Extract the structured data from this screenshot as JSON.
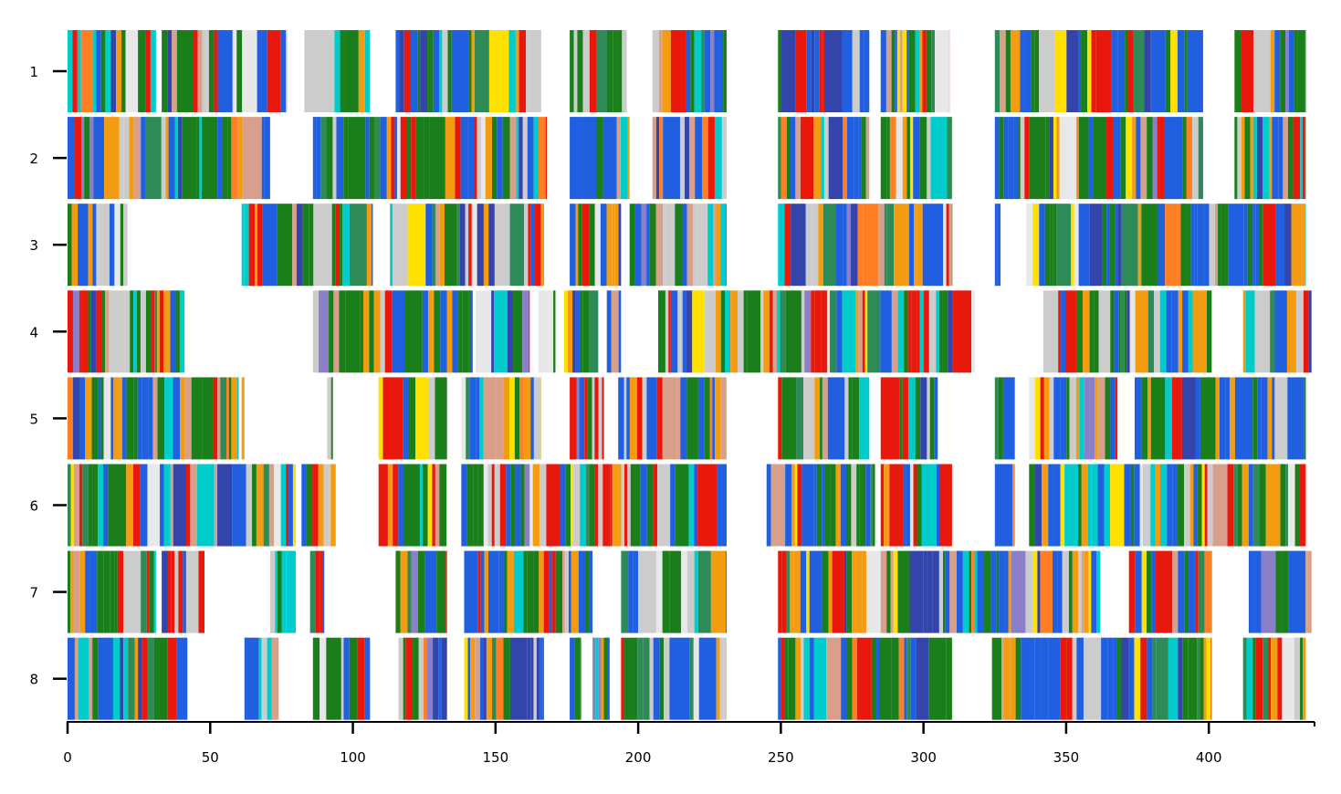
{
  "chart_data": {
    "type": "bar",
    "orientation": "horizontal-strips",
    "title": "",
    "xlabel": "",
    "ylabel": "",
    "xlim": [
      -1,
      437
    ],
    "x_ticks": [
      0,
      50,
      100,
      150,
      200,
      250,
      300,
      350,
      400
    ],
    "y_categories": [
      "1",
      "2",
      "3",
      "4",
      "5",
      "6",
      "7",
      "8"
    ],
    "grid": false,
    "legend": "none",
    "palette": [
      "#1a7f1a",
      "#1f5fe0",
      "#e8180c",
      "#f39c12",
      "#00cccc",
      "#cccccc",
      "#d8a08a",
      "#2e8b57",
      "#3344aa",
      "#ffe000",
      "#ff7f24",
      "#8a7fc8",
      "#e8e8e8"
    ],
    "rows": [
      {
        "label": "1",
        "segments": [
          [
            0,
            31
          ],
          [
            33,
            77
          ],
          [
            83,
            106
          ],
          [
            115,
            166
          ],
          [
            176,
            196
          ],
          [
            205,
            231
          ],
          [
            249,
            281
          ],
          [
            285,
            309
          ],
          [
            325,
            398
          ],
          [
            409,
            434
          ]
        ]
      },
      {
        "label": "2",
        "segments": [
          [
            0,
            71
          ],
          [
            86,
            168
          ],
          [
            176,
            197
          ],
          [
            205,
            231
          ],
          [
            249,
            281
          ],
          [
            285,
            310
          ],
          [
            325,
            398
          ],
          [
            409,
            434
          ]
        ]
      },
      {
        "label": "3",
        "segments": [
          [
            0,
            21
          ],
          [
            61,
            107
          ],
          [
            113,
            167
          ],
          [
            176,
            194
          ],
          [
            197,
            231
          ],
          [
            249,
            310
          ],
          [
            325,
            327
          ],
          [
            336,
            434
          ]
        ]
      },
      {
        "label": "4",
        "segments": [
          [
            0,
            41
          ],
          [
            86,
            142
          ],
          [
            143,
            162
          ],
          [
            165,
            171
          ],
          [
            174,
            186
          ],
          [
            189,
            194
          ],
          [
            207,
            318
          ],
          [
            342,
            401
          ],
          [
            412,
            436
          ]
        ]
      },
      {
        "label": "5",
        "segments": [
          [
            0,
            60
          ],
          [
            61,
            62
          ],
          [
            91,
            93
          ],
          [
            109,
            133
          ],
          [
            138,
            166
          ],
          [
            176,
            188
          ],
          [
            193,
            231
          ],
          [
            249,
            281
          ],
          [
            285,
            305
          ],
          [
            325,
            332
          ],
          [
            337,
            368
          ],
          [
            374,
            434
          ]
        ]
      },
      {
        "label": "6",
        "segments": [
          [
            0,
            80
          ],
          [
            82,
            94
          ],
          [
            109,
            133
          ],
          [
            138,
            231
          ],
          [
            245,
            283
          ],
          [
            285,
            310
          ],
          [
            325,
            332
          ],
          [
            337,
            434
          ]
        ]
      },
      {
        "label": "7",
        "segments": [
          [
            0,
            31
          ],
          [
            33,
            48
          ],
          [
            71,
            80
          ],
          [
            85,
            90
          ],
          [
            115,
            133
          ],
          [
            139,
            184
          ],
          [
            194,
            231
          ],
          [
            249,
            362
          ],
          [
            372,
            401
          ],
          [
            414,
            436
          ]
        ]
      },
      {
        "label": "8",
        "segments": [
          [
            0,
            42
          ],
          [
            62,
            74
          ],
          [
            86,
            106
          ],
          [
            116,
            133
          ],
          [
            139,
            167
          ],
          [
            176,
            180
          ],
          [
            184,
            190
          ],
          [
            194,
            231
          ],
          [
            249,
            310
          ],
          [
            324,
            401
          ],
          [
            412,
            434
          ]
        ]
      }
    ]
  }
}
